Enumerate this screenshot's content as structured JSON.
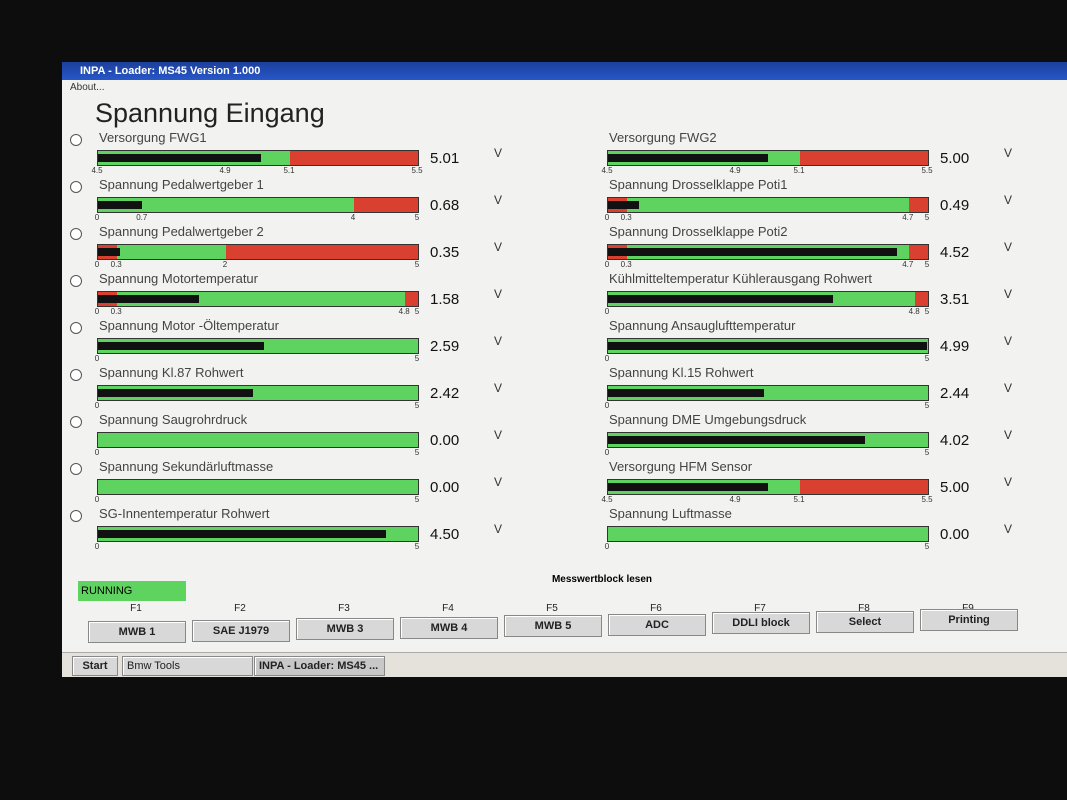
{
  "window": {
    "title": "INPA - Loader:  MS45 Version 1.000",
    "menu": "About..."
  },
  "heading": "Spannung Eingang",
  "left_gauges": [
    {
      "label": "Versorgung FWG1",
      "value": "5.01",
      "unit": "V",
      "ticks": [
        "4.5",
        "4.9",
        "5.1",
        "5.5"
      ],
      "segments": [
        "#5fd35f",
        "#5fd35f",
        "#d9402f"
      ]
    },
    {
      "label": "Spannung Pedalwertgeber 1",
      "value": "0.68",
      "unit": "V",
      "ticks": [
        "0",
        "0.7",
        "4",
        "5"
      ],
      "segments": [
        "#5fd35f",
        "#5fd35f",
        "#d9402f"
      ]
    },
    {
      "label": "Spannung Pedalwertgeber 2",
      "value": "0.35",
      "unit": "V",
      "ticks": [
        "0",
        "0.3",
        "2",
        "5"
      ],
      "segments": [
        "#d9402f",
        "#5fd35f",
        "#d9402f"
      ]
    },
    {
      "label": "Spannung Motortemperatur",
      "value": "1.58",
      "unit": "V",
      "ticks": [
        "0",
        "0.3",
        "4.8",
        "5"
      ],
      "segments": [
        "#d9402f",
        "#5fd35f",
        "#d9402f"
      ]
    },
    {
      "label": "Spannung Motor -Öltemperatur",
      "value": "2.59",
      "unit": "V",
      "ticks": [
        "0",
        "5"
      ],
      "segments": [
        "#5fd35f"
      ]
    },
    {
      "label": "Spannung Kl.87 Rohwert",
      "value": "2.42",
      "unit": "V",
      "ticks": [
        "0",
        "5"
      ],
      "segments": [
        "#5fd35f"
      ]
    },
    {
      "label": "Spannung Saugrohrdruck",
      "value": "0.00",
      "unit": "V",
      "ticks": [
        "0",
        "5"
      ],
      "segments": [
        "#5fd35f"
      ]
    },
    {
      "label": "Spannung Sekundärluftmasse",
      "value": "0.00",
      "unit": "V",
      "ticks": [
        "0",
        "5"
      ],
      "segments": [
        "#5fd35f"
      ]
    },
    {
      "label": "SG-Innentemperatur Rohwert",
      "value": "4.50",
      "unit": "V",
      "ticks": [
        "0",
        "5"
      ],
      "segments": [
        "#5fd35f"
      ]
    }
  ],
  "right_gauges": [
    {
      "label": "Versorgung FWG2",
      "value": "5.00",
      "unit": "V",
      "ticks": [
        "4.5",
        "4.9",
        "5.1",
        "5.5"
      ],
      "segments": [
        "#5fd35f",
        "#5fd35f",
        "#d9402f"
      ]
    },
    {
      "label": "Spannung Drosselklappe Poti1",
      "value": "0.49",
      "unit": "V",
      "ticks": [
        "0",
        "0.3",
        "4.7",
        "5"
      ],
      "segments": [
        "#d9402f",
        "#5fd35f",
        "#d9402f"
      ]
    },
    {
      "label": "Spannung Drosselklappe Poti2",
      "value": "4.52",
      "unit": "V",
      "ticks": [
        "0",
        "0.3",
        "4.7",
        "5"
      ],
      "segments": [
        "#d9402f",
        "#5fd35f",
        "#d9402f"
      ]
    },
    {
      "label": "Kühlmitteltemperatur Kühlerausgang Rohwert",
      "value": "3.51",
      "unit": "V",
      "ticks": [
        "0",
        "4.8",
        "5"
      ],
      "segments": [
        "#5fd35f",
        "#d9402f"
      ]
    },
    {
      "label": "Spannung Ansauglufttemperatur",
      "value": "4.99",
      "unit": "V",
      "ticks": [
        "0",
        "5"
      ],
      "segments": [
        "#5fd35f"
      ]
    },
    {
      "label": "Spannung Kl.15 Rohwert",
      "value": "2.44",
      "unit": "V",
      "ticks": [
        "0",
        "5"
      ],
      "segments": [
        "#5fd35f"
      ]
    },
    {
      "label": "Spannung DME Umgebungsdruck",
      "value": "4.02",
      "unit": "V",
      "ticks": [
        "0",
        "5"
      ],
      "segments": [
        "#5fd35f"
      ]
    },
    {
      "label": "Versorgung HFM Sensor",
      "value": "5.00",
      "unit": "V",
      "ticks": [
        "4.5",
        "4.9",
        "5.1",
        "5.5"
      ],
      "segments": [
        "#5fd35f",
        "#5fd35f",
        "#d9402f"
      ]
    },
    {
      "label": "Spannung Luftmasse",
      "value": "0.00",
      "unit": "V",
      "ticks": [
        "0",
        "5"
      ],
      "segments": [
        "#5fd35f"
      ]
    }
  ],
  "status": "RUNNING",
  "toolbar_title": "Messwertblock lesen",
  "function_keys": [
    {
      "key": "F1",
      "label": "MWB 1"
    },
    {
      "key": "F2",
      "label": "SAE J1979"
    },
    {
      "key": "F3",
      "label": "MWB 3"
    },
    {
      "key": "F4",
      "label": "MWB 4"
    },
    {
      "key": "F5",
      "label": "MWB 5"
    },
    {
      "key": "F6",
      "label": "ADC"
    },
    {
      "key": "F7",
      "label": "DDLI block"
    },
    {
      "key": "F8",
      "label": "Select"
    },
    {
      "key": "F9",
      "label": "Printing"
    }
  ],
  "taskbar": {
    "start": "Start",
    "items": [
      "Bmw Tools",
      "INPA - Loader:  MS45 ..."
    ]
  }
}
